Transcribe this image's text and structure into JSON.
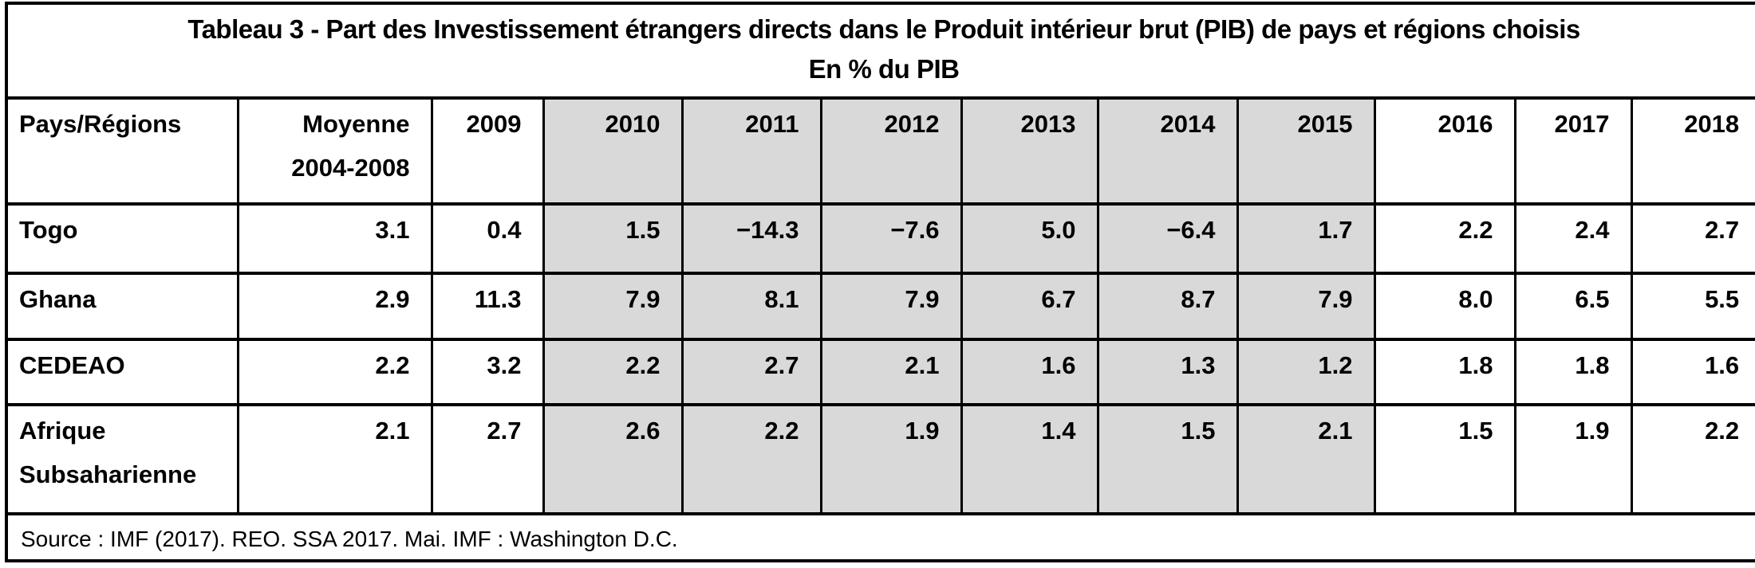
{
  "title": {
    "line1": "Tableau 3 - Part des Investissement étrangers directs dans le Produit intérieur brut (PIB) de pays et régions choisis",
    "line2": "En % du PIB"
  },
  "table": {
    "columns": [
      {
        "key": "pays-regions",
        "label": "Pays/Régions",
        "shaded": false
      },
      {
        "key": "moyenne-2004-2008",
        "label": "Moyenne 2004-2008",
        "label_lines": [
          "Moyenne",
          "2004-2008"
        ],
        "shaded": false
      },
      {
        "key": "2009",
        "label": "2009",
        "shaded": false
      },
      {
        "key": "2010",
        "label": "2010",
        "shaded": true
      },
      {
        "key": "2011",
        "label": "2011",
        "shaded": true
      },
      {
        "key": "2012",
        "label": "2012",
        "shaded": true
      },
      {
        "key": "2013",
        "label": "2013",
        "shaded": true
      },
      {
        "key": "2014",
        "label": "2014",
        "shaded": true
      },
      {
        "key": "2015",
        "label": "2015",
        "shaded": true
      },
      {
        "key": "2016",
        "label": "2016",
        "shaded": false
      },
      {
        "key": "2017",
        "label": "2017",
        "shaded": false
      },
      {
        "key": "2018",
        "label": "2018",
        "shaded": false
      }
    ],
    "rows": [
      {
        "key": "togo",
        "label": "Togo",
        "values": [
          "3.1",
          "0.4",
          "1.5",
          "−14.3",
          "−7.6",
          "5.0",
          "−6.4",
          "1.7",
          "2.2",
          "2.4",
          "2.7"
        ]
      },
      {
        "key": "ghana",
        "label": "Ghana",
        "values": [
          "2.9",
          "11.3",
          "7.9",
          "8.1",
          "7.9",
          "6.7",
          "8.7",
          "7.9",
          "8.0",
          "6.5",
          "5.5"
        ]
      },
      {
        "key": "cedeao",
        "label": "CEDEAO",
        "values": [
          "2.2",
          "3.2",
          "2.2",
          "2.7",
          "2.1",
          "1.6",
          "1.3",
          "1.2",
          "1.8",
          "1.8",
          "1.6"
        ]
      },
      {
        "key": "afrique-subsaharienne",
        "label": "Afrique Subsaharienne",
        "label_lines": [
          "Afrique",
          "Subsaharienne"
        ],
        "values": [
          "2.1",
          "2.7",
          "2.6",
          "2.2",
          "1.9",
          "1.4",
          "1.5",
          "2.1",
          "1.5",
          "1.9",
          "2.2"
        ]
      }
    ],
    "source": "Source : IMF (2017). REO. SSA 2017. Mai. IMF : Washington D.C."
  },
  "chart_data": {
    "type": "table",
    "title": "Tableau 3 - Part des Investissement étrangers directs dans le Produit intérieur brut (PIB) de pays et régions choisis (En % du PIB)",
    "categories": [
      "Moyenne 2004-2008",
      "2009",
      "2010",
      "2011",
      "2012",
      "2013",
      "2014",
      "2015",
      "2016",
      "2017",
      "2018"
    ],
    "series": [
      {
        "name": "Togo",
        "values": [
          3.1,
          0.4,
          1.5,
          -14.3,
          -7.6,
          5.0,
          -6.4,
          1.7,
          2.2,
          2.4,
          2.7
        ]
      },
      {
        "name": "Ghana",
        "values": [
          2.9,
          11.3,
          7.9,
          8.1,
          7.9,
          6.7,
          8.7,
          7.9,
          8.0,
          6.5,
          5.5
        ]
      },
      {
        "name": "CEDEAO",
        "values": [
          2.2,
          3.2,
          2.2,
          2.7,
          2.1,
          1.6,
          1.3,
          1.2,
          1.8,
          1.8,
          1.6
        ]
      },
      {
        "name": "Afrique Subsaharienne",
        "values": [
          2.1,
          2.7,
          2.6,
          2.2,
          1.9,
          1.4,
          1.5,
          2.1,
          1.5,
          1.9,
          2.2
        ]
      }
    ],
    "shaded_years": [
      "2010",
      "2011",
      "2012",
      "2013",
      "2014",
      "2015"
    ],
    "source": "Source : IMF (2017). REO. SSA 2017. Mai. IMF : Washington D.C."
  },
  "colors": {
    "shaded_column_bg": "#d9d9d9",
    "border": "#000000",
    "background": "#ffffff",
    "text": "#000000"
  }
}
